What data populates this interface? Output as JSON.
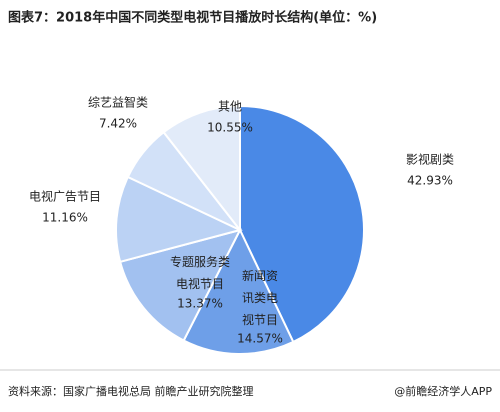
{
  "chart_data": {
    "type": "pie",
    "title": "图表7：2018年中国不同类型电视节目播放时长结构(单位：%)",
    "categories": [
      "影视剧类",
      "新闻资\n讯类电\n视节目",
      "专题服务类\n电视节目",
      "电视广告节目",
      "综艺益智类",
      "其他"
    ],
    "values": [
      42.93,
      14.57,
      13.37,
      11.16,
      7.42,
      10.55
    ],
    "value_labels": [
      "42.93%",
      "14.57%",
      "13.37%",
      "11.16%",
      "7.42%",
      "10.55%"
    ],
    "colors": [
      "#4a89e6",
      "#6e9fe8",
      "#a2c1f0",
      "#bbd2f4",
      "#d2e1f8",
      "#e2ebf9"
    ],
    "source": "资料来源：国家广播电视总局 前瞻产业研究院整理",
    "logo": "@前瞻经济学人APP"
  }
}
